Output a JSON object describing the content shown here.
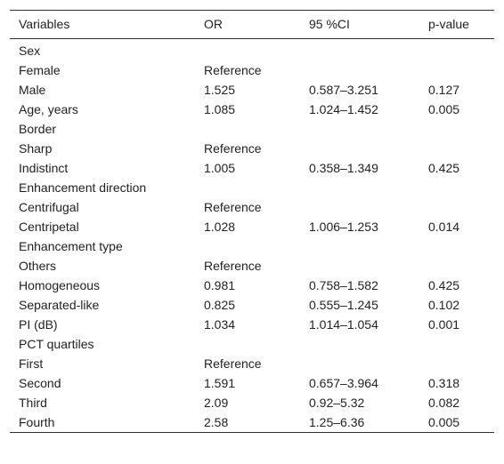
{
  "table": {
    "header": [
      "Variables",
      "OR",
      "95 %CI",
      "p-value"
    ],
    "rows": [
      [
        "Sex"
      ],
      [
        "Female",
        "Reference"
      ],
      [
        "Male",
        "1.525",
        "0.587–3.251",
        "0.127"
      ],
      [
        "Age, years",
        "1.085",
        "1.024–1.452",
        "0.005"
      ],
      [
        "Border"
      ],
      [
        "Sharp",
        "Reference"
      ],
      [
        "Indistinct",
        "1.005",
        "0.358–1.349",
        "0.425"
      ],
      [
        "Enhancement direction"
      ],
      [
        "Centrifugal",
        "Reference"
      ],
      [
        "Centripetal",
        "1.028",
        "1.006–1.253",
        "0.014"
      ],
      [
        "Enhancement type"
      ],
      [
        "Others",
        "Reference"
      ],
      [
        "Homogeneous",
        "0.981",
        "0.758–1.582",
        "0.425"
      ],
      [
        "Separated-like",
        "0.825",
        "0.555–1.245",
        "0.102"
      ],
      [
        "PI (dB)",
        "1.034",
        "1.014–1.054",
        "0.001"
      ],
      [
        "PCT quartiles"
      ],
      [
        "First",
        "Reference"
      ],
      [
        "Second",
        "1.591",
        "0.657–3.964",
        "0.318"
      ],
      [
        "Third",
        "2.09",
        "0.92–5.32",
        "0.082"
      ],
      [
        "Fourth",
        "2.58",
        "1.25–6.36",
        "0.005"
      ]
    ]
  }
}
